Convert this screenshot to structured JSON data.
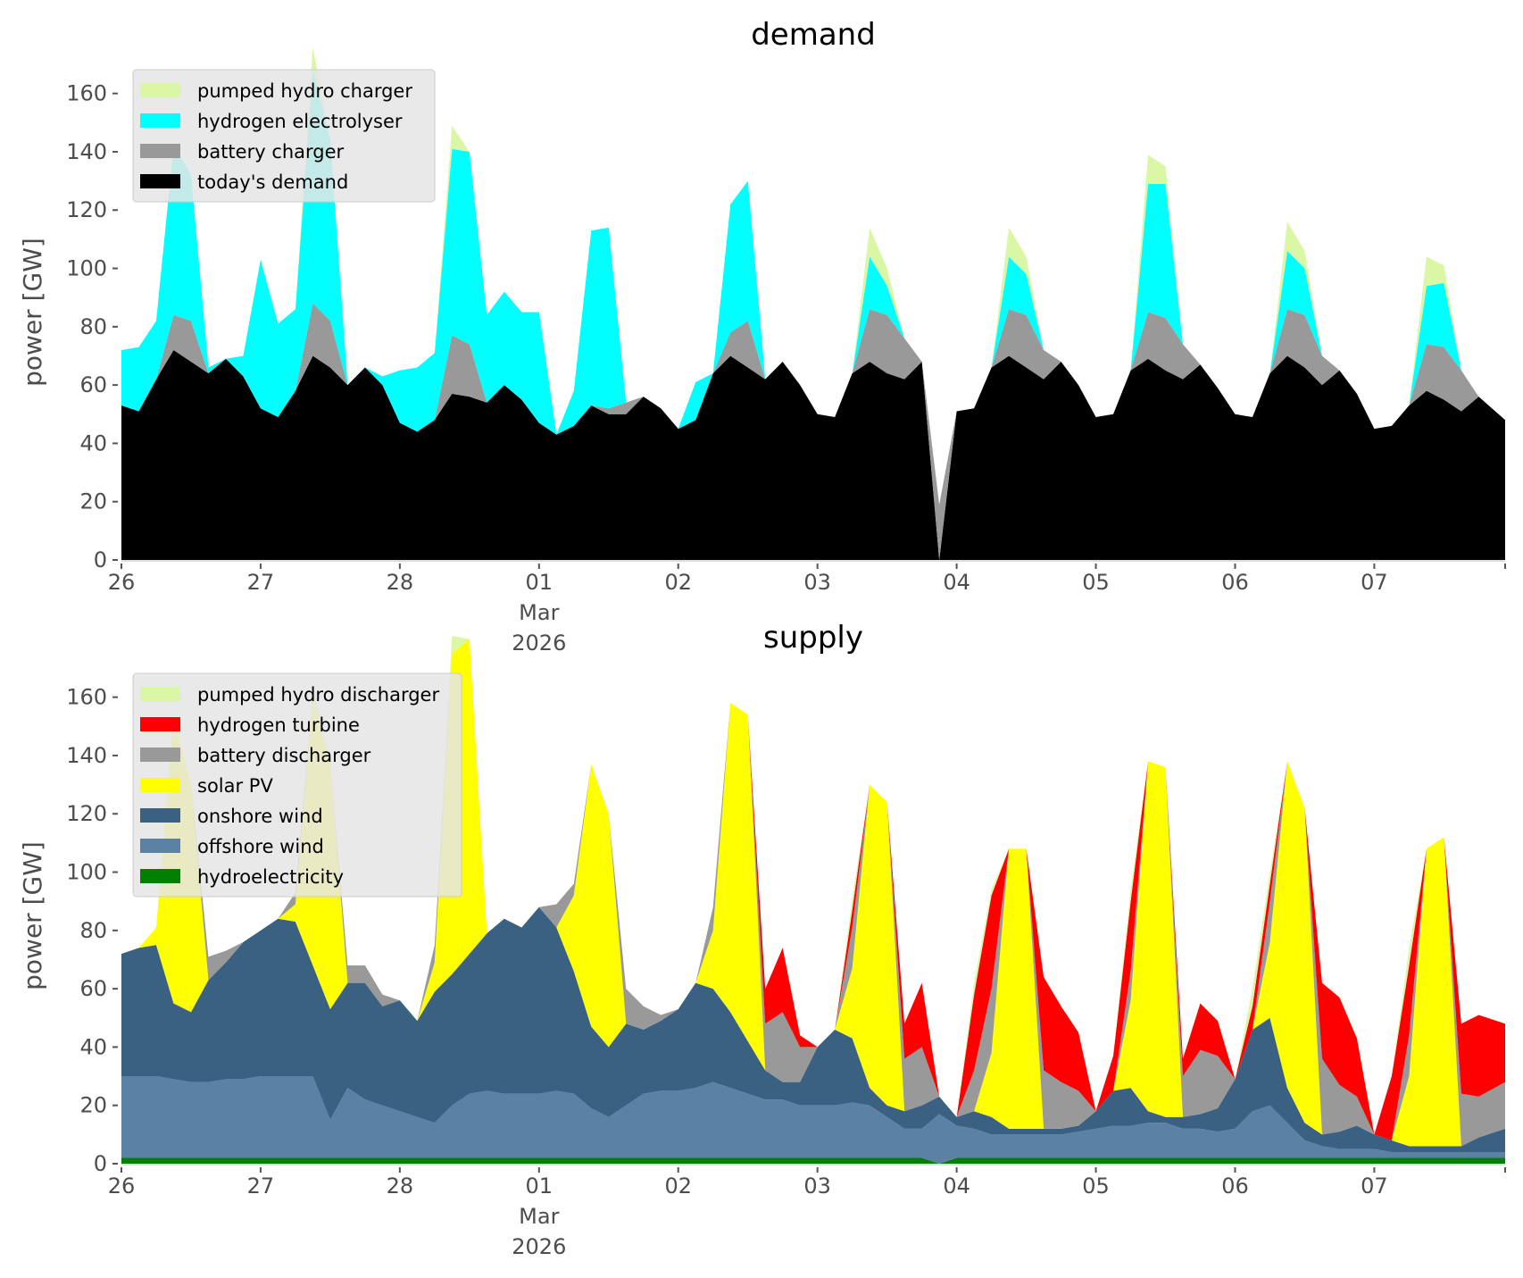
{
  "chart_data": [
    {
      "type": "area",
      "stacked": true,
      "title": "demand",
      "xlabel": "",
      "ylabel": "power [GW]",
      "ylim": [
        0,
        170
      ],
      "yticks": [
        0,
        20,
        40,
        60,
        80,
        100,
        120,
        140,
        160
      ],
      "xlim_days": [
        0,
        9.94
      ],
      "xticks": [
        {
          "day": 0,
          "label": "26"
        },
        {
          "day": 1,
          "label": "27"
        },
        {
          "day": 2,
          "label": "28"
        },
        {
          "day": 3,
          "label": "01",
          "sublabel": "Mar\n2026"
        },
        {
          "day": 4,
          "label": "02"
        },
        {
          "day": 5,
          "label": "03"
        },
        {
          "day": 6,
          "label": "04"
        },
        {
          "day": 7,
          "label": "05"
        },
        {
          "day": 8,
          "label": "06"
        },
        {
          "day": 9,
          "label": "07"
        }
      ],
      "x_step_hours": 3,
      "x_start": "2026-02-26 00:00",
      "grid": false,
      "legend_position": "top-left",
      "series": [
        {
          "name": "today's demand",
          "color": "#000000",
          "values": [
            53,
            51,
            62,
            72,
            68,
            64,
            69,
            63,
            52,
            49,
            58,
            70,
            66,
            60,
            66,
            60,
            47,
            44,
            48,
            57,
            56,
            54,
            60,
            55,
            47,
            43,
            46,
            53,
            50,
            50,
            56,
            52,
            45,
            48,
            64,
            70,
            66,
            62,
            68,
            60,
            50,
            49,
            64,
            68,
            64,
            62,
            68,
            0,
            51,
            52,
            66,
            70,
            66,
            62,
            68,
            60,
            49,
            50,
            65,
            69,
            65,
            62,
            67,
            59,
            50,
            49,
            64,
            70,
            66,
            60,
            65,
            57,
            45,
            46,
            53,
            58,
            55,
            51,
            56,
            48
          ]
        },
        {
          "name": "battery charger",
          "color": "#999999",
          "values": [
            0,
            0,
            0,
            12,
            14,
            0,
            0,
            0,
            0,
            0,
            0,
            18,
            16,
            0,
            0,
            0,
            0,
            0,
            0,
            20,
            18,
            0,
            0,
            0,
            0,
            0,
            0,
            0,
            2,
            4,
            0,
            0,
            0,
            0,
            0,
            8,
            16,
            0,
            0,
            0,
            0,
            0,
            0,
            18,
            20,
            14,
            0,
            19,
            0,
            0,
            0,
            16,
            18,
            10,
            0,
            0,
            0,
            0,
            0,
            16,
            18,
            12,
            0,
            0,
            0,
            0,
            0,
            16,
            18,
            10,
            0,
            0,
            0,
            0,
            0,
            16,
            18,
            14,
            0,
            0
          ]
        },
        {
          "name": "hydrogen electrolyser",
          "color": "#00ffff",
          "values": [
            19,
            22,
            20,
            58,
            50,
            2,
            0,
            7,
            51,
            32,
            28,
            80,
            62,
            0,
            0,
            3,
            18,
            22,
            23,
            64,
            66,
            30,
            32,
            30,
            38,
            0,
            12,
            60,
            62,
            0,
            0,
            0,
            0,
            13,
            0,
            44,
            48,
            0,
            0,
            0,
            0,
            0,
            0,
            18,
            10,
            0,
            0,
            0,
            0,
            0,
            0,
            18,
            14,
            0,
            0,
            0,
            0,
            0,
            0,
            44,
            46,
            0,
            0,
            0,
            0,
            0,
            0,
            20,
            16,
            0,
            0,
            0,
            0,
            0,
            0,
            20,
            22,
            0,
            0,
            0
          ]
        },
        {
          "name": "pumped hydro charger",
          "color": "#daf7a6",
          "values": [
            0,
            0,
            0,
            0,
            0,
            0,
            0,
            0,
            0,
            0,
            0,
            8,
            0,
            0,
            0,
            0,
            0,
            0,
            0,
            8,
            0,
            0,
            0,
            0,
            0,
            0,
            0,
            0,
            0,
            0,
            0,
            0,
            0,
            0,
            0,
            0,
            0,
            0,
            0,
            0,
            0,
            0,
            0,
            10,
            6,
            0,
            0,
            0,
            0,
            0,
            0,
            10,
            6,
            0,
            0,
            0,
            0,
            0,
            0,
            10,
            6,
            0,
            0,
            0,
            0,
            0,
            0,
            10,
            6,
            0,
            0,
            0,
            0,
            0,
            0,
            10,
            6,
            0,
            0,
            0
          ]
        }
      ],
      "legend": [
        "pumped hydro charger",
        "hydrogen electrolyser",
        "battery charger",
        "today's demand"
      ]
    },
    {
      "type": "area",
      "stacked": true,
      "title": "supply",
      "xlabel": "",
      "ylabel": "power [GW]",
      "ylim": [
        0,
        170
      ],
      "yticks": [
        0,
        20,
        40,
        60,
        80,
        100,
        120,
        140,
        160
      ],
      "xlim_days": [
        0,
        9.94
      ],
      "xticks": [
        {
          "day": 0,
          "label": "26"
        },
        {
          "day": 1,
          "label": "27"
        },
        {
          "day": 2,
          "label": "28"
        },
        {
          "day": 3,
          "label": "01",
          "sublabel": "Mar\n2026"
        },
        {
          "day": 4,
          "label": "02"
        },
        {
          "day": 5,
          "label": "03"
        },
        {
          "day": 6,
          "label": "04"
        },
        {
          "day": 7,
          "label": "05"
        },
        {
          "day": 8,
          "label": "06"
        },
        {
          "day": 9,
          "label": "07"
        }
      ],
      "x_step_hours": 3,
      "x_start": "2026-02-26 00:00",
      "grid": false,
      "legend_position": "top-left",
      "series": [
        {
          "name": "hydroelectricity",
          "color": "#008000",
          "values": [
            2,
            2,
            2,
            2,
            2,
            2,
            2,
            2,
            2,
            2,
            2,
            2,
            2,
            2,
            2,
            2,
            2,
            2,
            2,
            2,
            2,
            2,
            2,
            2,
            2,
            2,
            2,
            2,
            2,
            2,
            2,
            2,
            2,
            2,
            2,
            2,
            2,
            2,
            2,
            2,
            2,
            2,
            2,
            2,
            2,
            2,
            2,
            0,
            2,
            2,
            2,
            2,
            2,
            2,
            2,
            2,
            2,
            2,
            2,
            2,
            2,
            2,
            2,
            2,
            2,
            2,
            2,
            2,
            2,
            2,
            2,
            2,
            2,
            2,
            2,
            2,
            2,
            2,
            2,
            2
          ]
        },
        {
          "name": "offshore wind",
          "color": "#5b82a4",
          "values": [
            28,
            28,
            28,
            27,
            26,
            26,
            27,
            27,
            28,
            28,
            28,
            28,
            13,
            24,
            20,
            18,
            16,
            14,
            12,
            18,
            22,
            23,
            22,
            22,
            22,
            23,
            22,
            17,
            14,
            18,
            22,
            23,
            23,
            24,
            26,
            24,
            22,
            20,
            20,
            18,
            18,
            18,
            19,
            18,
            14,
            10,
            10,
            17,
            11,
            10,
            8,
            8,
            8,
            8,
            8,
            9,
            10,
            11,
            11,
            12,
            12,
            10,
            10,
            9,
            10,
            16,
            18,
            12,
            6,
            4,
            3,
            3,
            3,
            2,
            2,
            2,
            2,
            2,
            2,
            2
          ]
        },
        {
          "name": "onshore wind",
          "color": "#3b6182",
          "values": [
            42,
            44,
            45,
            26,
            24,
            35,
            40,
            47,
            50,
            54,
            53,
            38,
            38,
            36,
            40,
            34,
            38,
            33,
            45,
            45,
            48,
            54,
            60,
            57,
            64,
            56,
            42,
            28,
            24,
            28,
            22,
            24,
            28,
            36,
            32,
            26,
            18,
            10,
            6,
            8,
            20,
            26,
            22,
            6,
            4,
            6,
            8,
            6,
            3,
            6,
            6,
            2,
            2,
            2,
            2,
            2,
            6,
            12,
            13,
            4,
            2,
            4,
            5,
            8,
            17,
            28,
            30,
            12,
            6,
            4,
            6,
            8,
            5,
            4,
            2,
            2,
            2,
            2,
            5,
            8
          ]
        },
        {
          "name": "solar PV",
          "color": "#ffff00",
          "values": [
            0,
            0,
            6,
            98,
            78,
            0,
            0,
            0,
            0,
            0,
            6,
            92,
            84,
            0,
            0,
            0,
            0,
            0,
            10,
            110,
            108,
            0,
            0,
            0,
            0,
            0,
            26,
            90,
            80,
            0,
            0,
            0,
            0,
            0,
            20,
            106,
            112,
            0,
            0,
            0,
            0,
            0,
            24,
            104,
            104,
            0,
            0,
            0,
            0,
            0,
            22,
            96,
            96,
            0,
            0,
            0,
            0,
            0,
            30,
            120,
            120,
            0,
            0,
            0,
            0,
            0,
            26,
            112,
            108,
            0,
            0,
            0,
            0,
            0,
            24,
            102,
            106,
            0,
            0,
            0
          ]
        },
        {
          "name": "battery discharger",
          "color": "#999999",
          "values": [
            0,
            0,
            0,
            0,
            0,
            8,
            4,
            0,
            0,
            0,
            4,
            0,
            0,
            6,
            6,
            4,
            0,
            0,
            6,
            0,
            0,
            0,
            0,
            0,
            0,
            8,
            4,
            0,
            0,
            12,
            8,
            2,
            0,
            0,
            8,
            0,
            0,
            16,
            24,
            12,
            0,
            0,
            14,
            0,
            0,
            18,
            20,
            0,
            0,
            14,
            22,
            0,
            0,
            20,
            16,
            12,
            0,
            0,
            10,
            0,
            0,
            14,
            22,
            18,
            0,
            0,
            14,
            0,
            0,
            26,
            16,
            10,
            0,
            0,
            14,
            0,
            0,
            18,
            14,
            16
          ]
        },
        {
          "name": "hydrogen turbine",
          "color": "#ff0000",
          "values": [
            0,
            0,
            0,
            0,
            0,
            0,
            0,
            0,
            0,
            0,
            0,
            0,
            0,
            0,
            0,
            0,
            0,
            0,
            0,
            0,
            0,
            0,
            0,
            0,
            0,
            0,
            0,
            0,
            0,
            0,
            0,
            0,
            0,
            0,
            0,
            0,
            0,
            12,
            22,
            4,
            0,
            0,
            6,
            0,
            0,
            12,
            22,
            0,
            0,
            26,
            32,
            0,
            0,
            32,
            26,
            20,
            0,
            12,
            24,
            0,
            0,
            6,
            16,
            12,
            0,
            8,
            6,
            0,
            0,
            26,
            30,
            20,
            0,
            22,
            24,
            0,
            0,
            24,
            28,
            20
          ]
        },
        {
          "name": "pumped hydro discharger",
          "color": "#daf7a6",
          "values": [
            0,
            0,
            0,
            0,
            0,
            0,
            0,
            0,
            0,
            0,
            0,
            4,
            0,
            0,
            0,
            0,
            0,
            0,
            0,
            6,
            0,
            0,
            0,
            0,
            0,
            0,
            0,
            0,
            0,
            0,
            0,
            0,
            0,
            0,
            0,
            0,
            0,
            0,
            0,
            0,
            0,
            0,
            4,
            0,
            0,
            0,
            0,
            0,
            0,
            4,
            2,
            0,
            0,
            0,
            0,
            0,
            0,
            0,
            4,
            0,
            0,
            0,
            0,
            0,
            0,
            6,
            4,
            0,
            0,
            0,
            0,
            0,
            0,
            0,
            6,
            0,
            0,
            0,
            0,
            0
          ]
        }
      ],
      "legend": [
        "pumped hydro discharger",
        "hydrogen turbine",
        "battery discharger",
        "solar PV",
        "onshore wind",
        "offshore wind",
        "hydroelectricity"
      ]
    }
  ]
}
